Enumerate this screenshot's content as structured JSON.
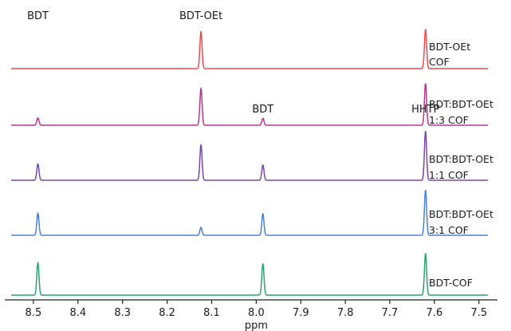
{
  "chart_data": {
    "type": "line",
    "xlabel": "ppm",
    "ylabel": "",
    "xlim": [
      8.55,
      7.48
    ],
    "x_reversed": true,
    "x_ticks": [
      8.5,
      8.4,
      8.3,
      8.2,
      8.1,
      8.0,
      7.9,
      7.8,
      7.7,
      7.6,
      7.5
    ],
    "x_tick_labels": [
      "8.5",
      "8.4",
      "8.3",
      "8.2",
      "8.1",
      "8.0",
      "7.9",
      "7.8",
      "7.7",
      "7.6",
      "7.5"
    ],
    "grid": false,
    "legend": "none",
    "annotations": [
      {
        "text": "BDT-OEt",
        "x": 8.124
      },
      {
        "text": "HHTP",
        "x": 7.62
      },
      {
        "text": "BDT",
        "x": 8.49
      },
      {
        "text": "BDT",
        "x": 7.985
      }
    ],
    "series": [
      {
        "label_lines": [
          "BDT-OEt",
          "COF"
        ],
        "color": "#f04a4a",
        "peaks": [
          {
            "ppm": 8.124,
            "height": 0.75
          },
          {
            "ppm": 7.62,
            "height": 0.8
          }
        ]
      },
      {
        "label_lines": [
          "BDT:BDT-OEt",
          "1:3 COF"
        ],
        "color": "#b8378e",
        "peaks": [
          {
            "ppm": 8.49,
            "height": 0.15
          },
          {
            "ppm": 8.124,
            "height": 0.75
          },
          {
            "ppm": 7.985,
            "height": 0.14
          },
          {
            "ppm": 7.62,
            "height": 0.85
          }
        ]
      },
      {
        "label_lines": [
          "BDT:BDT-OEt",
          "1:1 COF"
        ],
        "color": "#7a45a8",
        "peaks": [
          {
            "ppm": 8.49,
            "height": 0.33
          },
          {
            "ppm": 8.124,
            "height": 0.72
          },
          {
            "ppm": 7.985,
            "height": 0.31
          },
          {
            "ppm": 7.62,
            "height": 1.0
          }
        ]
      },
      {
        "label_lines": [
          "BDT:BDT-OEt",
          "3:1 COF"
        ],
        "color": "#4a80d8",
        "peaks": [
          {
            "ppm": 8.49,
            "height": 0.45
          },
          {
            "ppm": 8.124,
            "height": 0.16
          },
          {
            "ppm": 7.985,
            "height": 0.44
          },
          {
            "ppm": 7.62,
            "height": 0.92
          }
        ]
      },
      {
        "label_lines": [
          "BDT-COF"
        ],
        "color": "#2ea36f",
        "peaks": [
          {
            "ppm": 8.49,
            "height": 0.66
          },
          {
            "ppm": 7.985,
            "height": 0.64
          },
          {
            "ppm": 7.62,
            "height": 0.85
          }
        ]
      }
    ]
  }
}
